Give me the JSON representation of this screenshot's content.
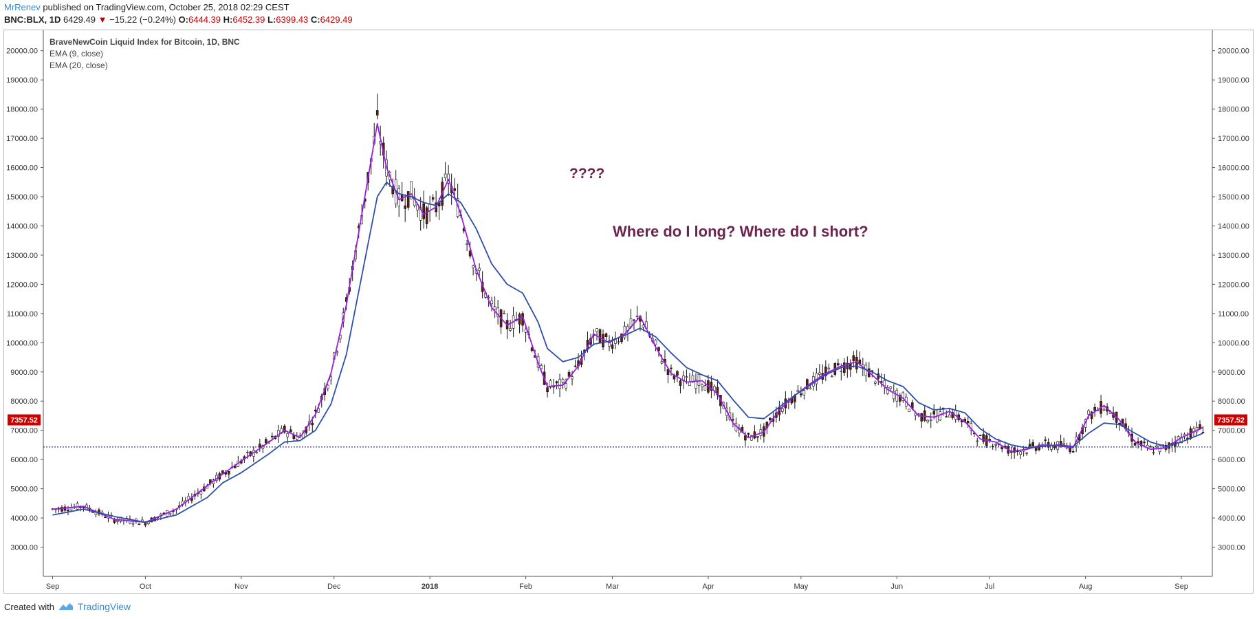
{
  "header": {
    "user": "MrRenev",
    "published": " published on TradingView.com, October 25, 2018 02:29 CEST",
    "symbol": "BNC:BLX, 1D",
    "last": "6429.49",
    "change": "−15.22 (−0.24%)",
    "open_label": "O:",
    "open": "6444.39",
    "high_label": "H:",
    "high": "6452.39",
    "low_label": "L:",
    "low": "6399.43",
    "close_label": "C:",
    "close": "6429.49"
  },
  "footer": {
    "created_with": "Created with",
    "brand": "TradingView"
  },
  "chart_data": {
    "type": "line",
    "title": "",
    "legend": [
      "BraveNewCoin Liquid Index for Bitcoin, 1D, BNC",
      "EMA (9, close)",
      "EMA (20, close)"
    ],
    "annotations": [
      "????",
      "Where do I long? Where do I short?"
    ],
    "price_label": "7357.52",
    "horizontal_line": 6430,
    "ylim": [
      2000,
      20700
    ],
    "y_ticks": [
      "3000.00",
      "4000.00",
      "5000.00",
      "6000.00",
      "7000.00",
      "8000.00",
      "9000.00",
      "10000.00",
      "11000.00",
      "12000.00",
      "13000.00",
      "14000.00",
      "15000.00",
      "16000.00",
      "17000.00",
      "18000.00",
      "19000.00",
      "20000.00"
    ],
    "x_ticks": [
      "Sep",
      "Oct",
      "Nov",
      "Dec",
      "2018",
      "Feb",
      "Mar",
      "Apr",
      "May",
      "Jun",
      "Jul",
      "Aug",
      "Sep"
    ],
    "x_tick_days": [
      0,
      30,
      61,
      91,
      122,
      153,
      181,
      212,
      242,
      273,
      303,
      334,
      365
    ],
    "x_range_days": [
      -3,
      375
    ],
    "series": [
      {
        "name": "EMA (9, close)",
        "color": "#9a1ee0",
        "x": [
          0,
          10,
          20,
          30,
          40,
          50,
          55,
          61,
          70,
          75,
          80,
          85,
          90,
          95,
          100,
          105,
          108,
          112,
          116,
          120,
          124,
          128,
          132,
          137,
          142,
          147,
          152,
          157,
          160,
          165,
          170,
          175,
          180,
          185,
          190,
          195,
          200,
          205,
          210,
          215,
          220,
          225,
          230,
          235,
          240,
          245,
          250,
          255,
          260,
          265,
          270,
          275,
          280,
          285,
          290,
          295,
          300,
          305,
          310,
          315,
          320,
          325,
          330,
          335,
          340,
          345,
          350,
          355,
          360,
          365,
          372
        ],
        "y": [
          4300,
          4400,
          3950,
          3850,
          4300,
          5100,
          5500,
          5950,
          6600,
          7000,
          6750,
          7550,
          8950,
          11300,
          14400,
          17500,
          16000,
          14900,
          15100,
          14400,
          14650,
          15600,
          14400,
          12500,
          11200,
          10600,
          10900,
          9300,
          8500,
          8550,
          9200,
          10300,
          10000,
          10300,
          10900,
          9850,
          8950,
          8650,
          8700,
          8250,
          7250,
          6750,
          6950,
          7700,
          8200,
          8600,
          8950,
          9200,
          9350,
          8900,
          8400,
          8100,
          7500,
          7450,
          7650,
          7300,
          6700,
          6600,
          6280,
          6350,
          6500,
          6480,
          6400,
          7500,
          7850,
          7350,
          6600,
          6350,
          6400,
          6750,
          7100
        ]
      },
      {
        "name": "EMA (20, close)",
        "color": "#2e4fa8",
        "x": [
          0,
          10,
          20,
          30,
          40,
          50,
          55,
          61,
          70,
          75,
          80,
          85,
          90,
          95,
          100,
          105,
          108,
          112,
          116,
          120,
          124,
          128,
          132,
          137,
          142,
          147,
          152,
          157,
          160,
          165,
          170,
          175,
          180,
          185,
          190,
          195,
          200,
          205,
          210,
          215,
          220,
          225,
          230,
          235,
          240,
          245,
          250,
          255,
          260,
          265,
          270,
          275,
          280,
          285,
          290,
          295,
          300,
          305,
          310,
          315,
          320,
          325,
          330,
          335,
          340,
          345,
          350,
          355,
          360,
          365,
          372
        ],
        "y": [
          4100,
          4300,
          4050,
          3850,
          4100,
          4700,
          5200,
          5550,
          6200,
          6600,
          6650,
          7000,
          7900,
          9600,
          12300,
          15000,
          15500,
          15100,
          15000,
          14800,
          14700,
          15100,
          14800,
          13900,
          12700,
          12000,
          11700,
          10700,
          9800,
          9350,
          9500,
          9950,
          10050,
          10250,
          10500,
          10200,
          9650,
          9150,
          8900,
          8700,
          8050,
          7450,
          7400,
          7800,
          8200,
          8550,
          8900,
          9150,
          9200,
          9000,
          8700,
          8500,
          7950,
          7700,
          7750,
          7600,
          7050,
          6700,
          6500,
          6400,
          6450,
          6500,
          6450,
          6900,
          7250,
          7200,
          6900,
          6600,
          6450,
          6600,
          6900
        ]
      }
    ]
  }
}
